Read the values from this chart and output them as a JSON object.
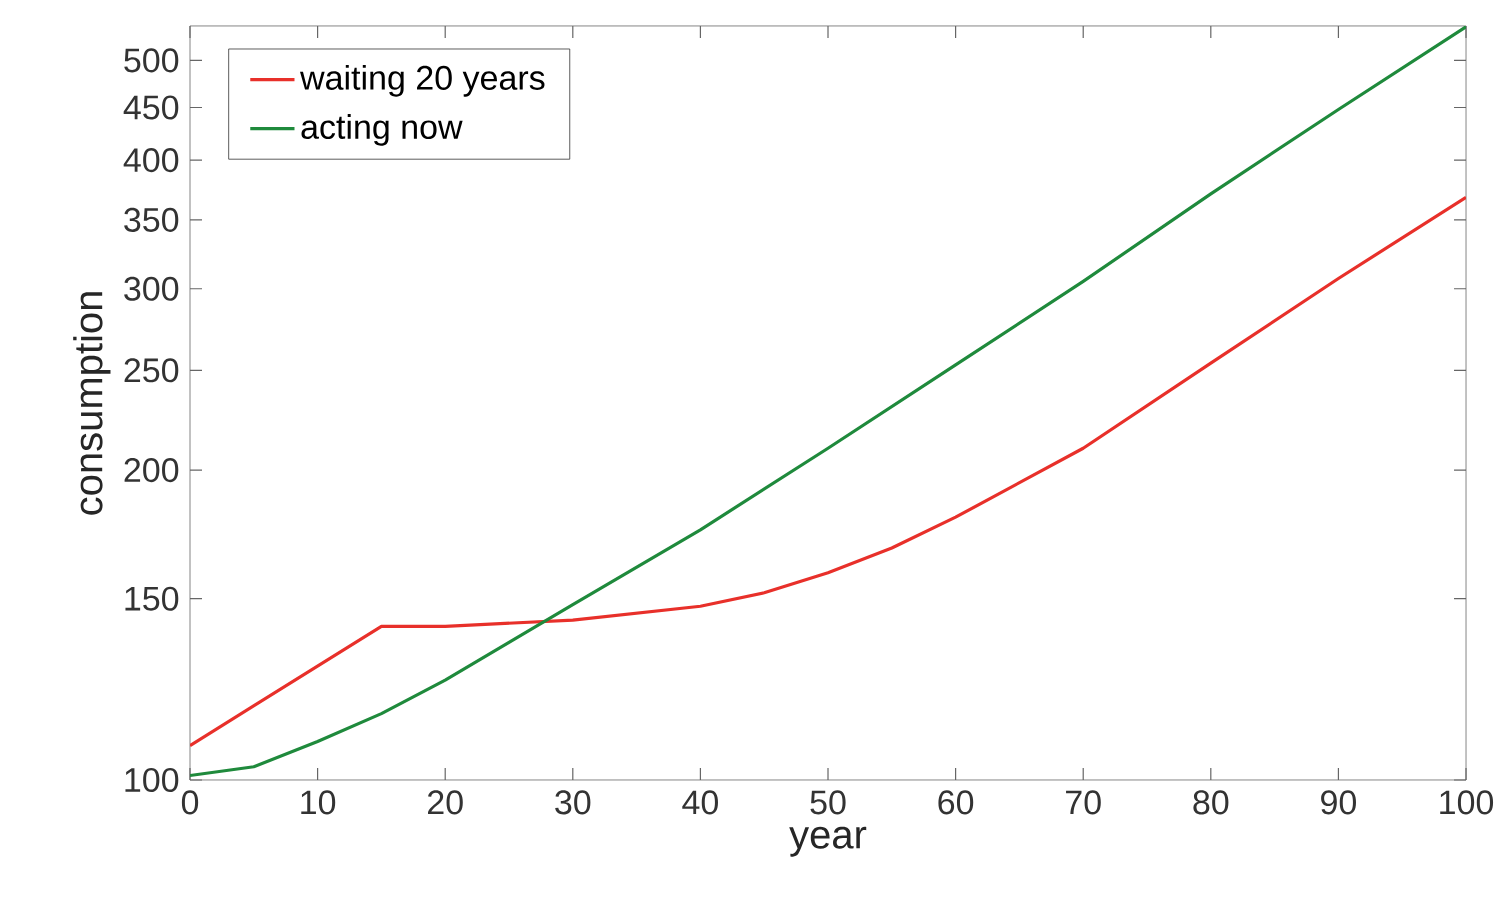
{
  "chart_data": {
    "type": "line",
    "xlabel": "year",
    "ylabel": "consumption",
    "log": "y",
    "xlim": [
      0,
      100
    ],
    "ylim": [
      100,
      540
    ],
    "xticks": [
      0,
      10,
      20,
      30,
      40,
      50,
      60,
      70,
      80,
      90,
      100
    ],
    "yticks": [
      100,
      150,
      200,
      250,
      300,
      350,
      400,
      450,
      500
    ],
    "legend": "top left",
    "grid": false,
    "marker": "none",
    "line_style": "solid",
    "series": [
      {
        "name": "waiting 20 years",
        "color": "#e8302a",
        "x": [
          0,
          15,
          20,
          30,
          40,
          45,
          50,
          55,
          60,
          70,
          80,
          90,
          100
        ],
        "values": [
          108,
          141,
          141,
          143,
          147.5,
          152,
          159,
          168,
          180,
          210,
          254,
          307,
          368
        ]
      },
      {
        "name": "acting now",
        "color": "#1f8a3c",
        "x": [
          0,
          5,
          10,
          15,
          20,
          25,
          30,
          40,
          50,
          60,
          70,
          80,
          90,
          100
        ],
        "values": [
          101,
          103,
          109,
          116,
          125,
          136,
          148,
          175,
          210,
          253,
          305,
          371,
          448,
          539
        ]
      }
    ]
  }
}
